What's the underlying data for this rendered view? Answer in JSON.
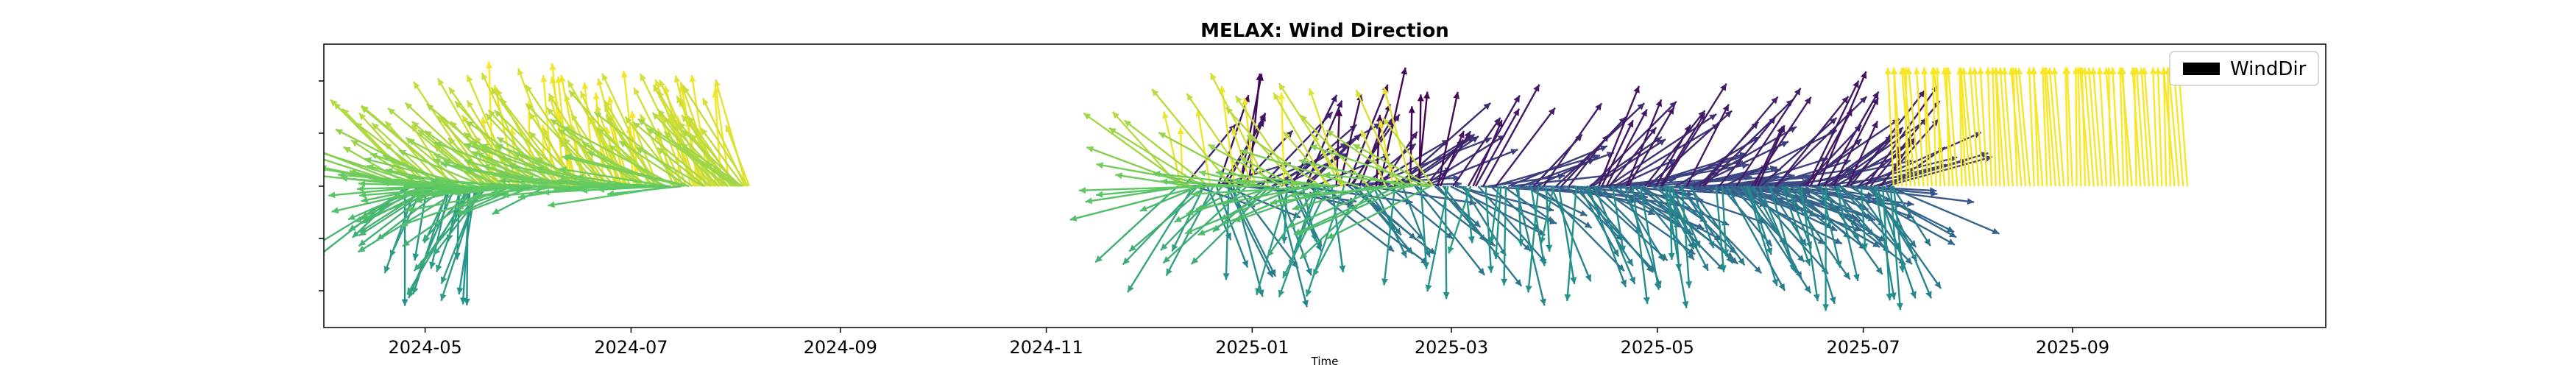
{
  "chart_data": {
    "type": "quiver",
    "title": "MELAX: Wind Direction",
    "xlabel": "Time",
    "ylabel": "",
    "x_tick_labels": [
      "2024-05",
      "2024-07",
      "2024-09",
      "2024-11",
      "2025-01",
      "2025-03",
      "2025-05",
      "2025-07",
      "2025-09"
    ],
    "x_range": [
      "2024-04-01",
      "2025-11-15"
    ],
    "y_ticks_labeled": false,
    "grid": false,
    "legend": {
      "entries": [
        "WindDir"
      ],
      "placement": "top-right"
    },
    "colormap": "viridis",
    "colormap_stops": [
      "#440154",
      "#3b528b",
      "#21918c",
      "#5ec962",
      "#fde725"
    ],
    "series": [
      {
        "name": "WindDir",
        "segments": [
          {
            "start": "2024-04-25",
            "end": "2024-05-20",
            "direction_range": [
              180,
              330
            ],
            "count": 80
          },
          {
            "start": "2024-05-20",
            "end": "2024-06-15",
            "direction_range": [
              240,
              360
            ],
            "count": 70
          },
          {
            "start": "2024-06-15",
            "end": "2024-07-20",
            "direction_range": [
              260,
              360
            ],
            "count": 80
          },
          {
            "start": "2024-07-20",
            "end": "2024-08-05",
            "direction_range": [
              300,
              360
            ],
            "count": 40
          },
          {
            "start": "2024-12-10",
            "end": "2025-02-25",
            "direction_range": [
              0,
              360
            ],
            "count": 170
          },
          {
            "start": "2025-02-25",
            "end": "2025-04-10",
            "direction_range": [
              20,
              200
            ],
            "count": 60
          },
          {
            "start": "2025-04-10",
            "end": "2025-07-10",
            "direction_range": [
              20,
              180
            ],
            "count": 200
          },
          {
            "start": "2025-07-10",
            "end": "2025-10-05",
            "direction_range": [
              355,
              360
            ],
            "count": 70
          }
        ]
      }
    ]
  }
}
